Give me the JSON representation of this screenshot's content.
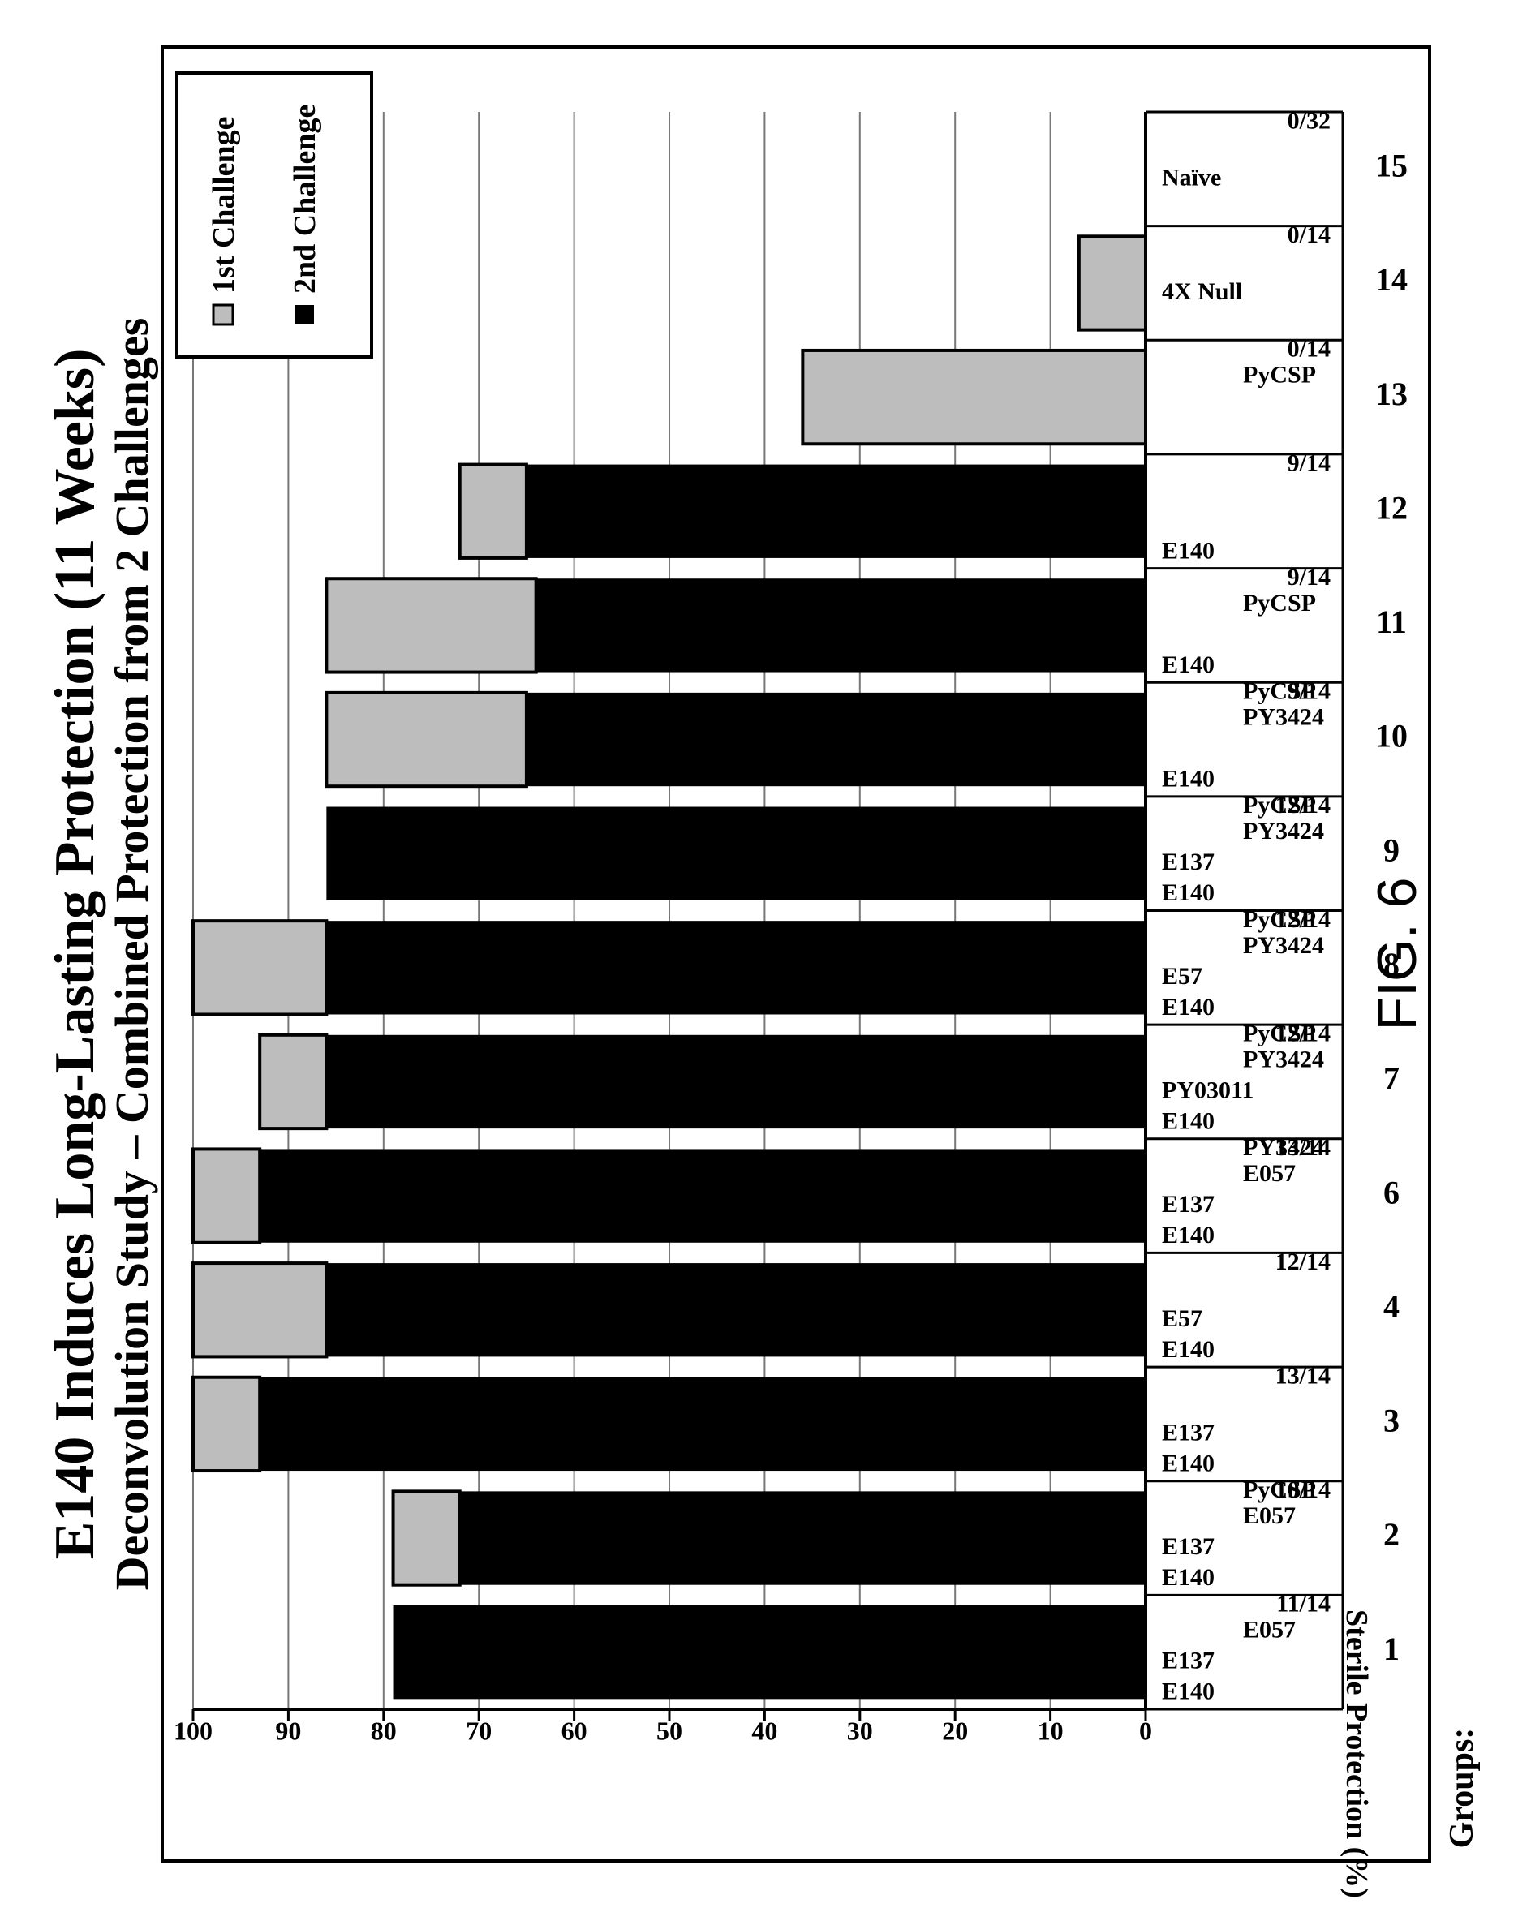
{
  "title": "E140 Induces Long-Lasting Protection (11 Weeks)",
  "subtitle": "Deconvolution Study – Combined Protection from 2 Challenges",
  "figure_label": "FIG. 6",
  "groups_label": "Groups:",
  "colors": {
    "first_challenge": "#bdbdbd",
    "second_challenge": "#000000",
    "frame": "#000000",
    "grid": "#777777"
  },
  "chart_data": {
    "type": "bar",
    "stacked": true,
    "ylabel": "Sterile Protection (%)",
    "ylim": [
      0,
      100
    ],
    "yticks": [
      0,
      10,
      20,
      30,
      40,
      50,
      60,
      70,
      80,
      90,
      100
    ],
    "grid": true,
    "legend_position": "top-right",
    "categories": [
      "1",
      "2",
      "3",
      "4",
      "6",
      "7",
      "8",
      "9",
      "10",
      "11",
      "12",
      "13",
      "14",
      "15"
    ],
    "composition": [
      [
        "E140",
        "E137",
        "E057",
        ""
      ],
      [
        "E140",
        "E137",
        "E057",
        "PyCSP"
      ],
      [
        "E140",
        "E137",
        "",
        ""
      ],
      [
        "E140",
        "E57",
        "",
        ""
      ],
      [
        "E140",
        "E137",
        "E057",
        "PY3424"
      ],
      [
        "E140",
        "PY03011",
        "PY3424",
        "PyCSP"
      ],
      [
        "E140",
        "E57",
        "PY3424",
        "PyCSP"
      ],
      [
        "E140",
        "E137",
        "PY3424",
        "PyCSP"
      ],
      [
        "E140",
        "",
        "PY3424",
        "PyCSP"
      ],
      [
        "E140",
        "",
        "PyCSP",
        ""
      ],
      [
        "E140",
        "",
        "",
        ""
      ],
      [
        "",
        "",
        "PyCSP",
        ""
      ],
      [
        "",
        "4X Null",
        "",
        ""
      ],
      [
        "",
        "Naïve",
        "",
        ""
      ]
    ],
    "fractions": [
      "11/14",
      "10/14",
      "13/14",
      "12/14",
      "13/14",
      "12/14",
      "12/14",
      "12/14",
      "9/14",
      "9/14",
      "9/14",
      "0/14",
      "0/14",
      "0/32"
    ],
    "series": [
      {
        "name": "2nd Challenge",
        "values": [
          79,
          72,
          93,
          86,
          93,
          86,
          86,
          86,
          65,
          64,
          65,
          0,
          0,
          0
        ]
      },
      {
        "name": "1st Challenge",
        "values": [
          0,
          7,
          7,
          14,
          7,
          7,
          14,
          0,
          21,
          22,
          7,
          36,
          7,
          0
        ]
      }
    ]
  }
}
